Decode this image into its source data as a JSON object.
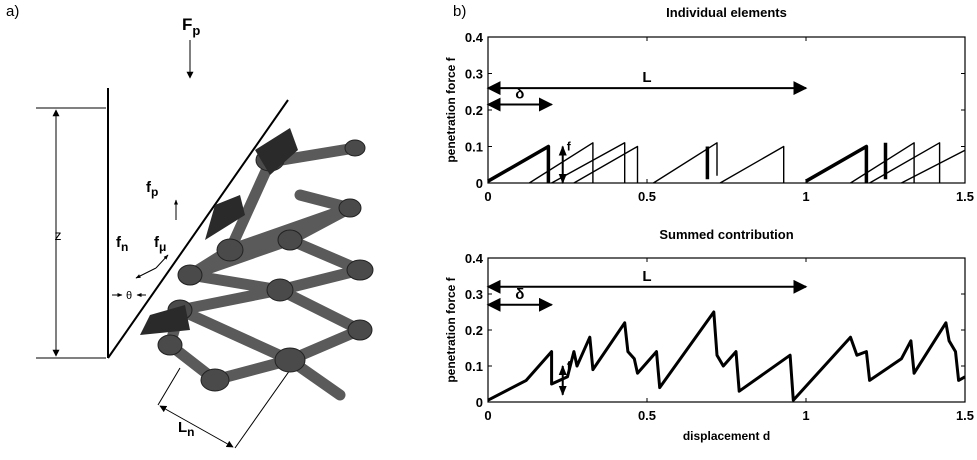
{
  "panel_labels": [
    "a)",
    "b)"
  ],
  "panel_a": {
    "labels": [
      {
        "text": "F",
        "sub": "p"
      },
      {
        "text": "f",
        "sub": "p"
      },
      {
        "text": "f",
        "sub": "n"
      },
      {
        "text": "f",
        "sub": "μ"
      },
      {
        "text": "θ"
      },
      {
        "text": "z"
      },
      {
        "text": "L",
        "sub": "n"
      }
    ]
  },
  "chart_data": [
    {
      "type": "line",
      "title": "Individual elements",
      "ylabel": "penetration force f",
      "xlim": [
        0,
        1.5
      ],
      "ylim": [
        0,
        0.4
      ],
      "xticks": [
        0,
        0.5,
        1,
        1.5
      ],
      "yticks": [
        0,
        0.1,
        0.2,
        0.3,
        0.4
      ],
      "series": [
        {
          "color": "#000000",
          "width": 3.5,
          "x": [
            0,
            0.19,
            0.19,
            null,
            0.69,
            0.69,
            null,
            1.0,
            1.19,
            1.19,
            null,
            1.25,
            1.25
          ],
          "values": [
            0.005,
            0.1,
            0,
            null,
            0.1,
            0.01,
            null,
            0.005,
            0.1,
            0,
            null,
            0.11,
            0.01
          ]
        },
        {
          "color": "#000000",
          "width": 1.4,
          "x": [
            0.13,
            0.33,
            0.33,
            null,
            0.52,
            0.72,
            0.72,
            null,
            1.14,
            1.34,
            1.34
          ],
          "values": [
            0,
            0.11,
            0,
            null,
            0,
            0.11,
            0.02,
            null,
            0,
            0.11,
            0
          ]
        },
        {
          "color": "#000000",
          "width": 1.4,
          "x": [
            0.2,
            0.43,
            0.43,
            null,
            0.73,
            0.93,
            0.93,
            null,
            1.2,
            1.42,
            1.42
          ],
          "values": [
            0,
            0.11,
            0,
            null,
            0,
            0.1,
            0,
            null,
            0,
            0.11,
            0
          ]
        },
        {
          "color": "#000000",
          "width": 1.4,
          "x": [
            0.27,
            0.47,
            0.47,
            null,
            1.3,
            1.5
          ],
          "values": [
            0,
            0.1,
            0,
            null,
            0,
            0.09
          ]
        }
      ],
      "annotations": [
        {
          "text": "L",
          "x": [
            0,
            1
          ],
          "y": 0.26
        },
        {
          "text": "δ",
          "x": [
            0,
            0.2
          ],
          "y": 0.215
        },
        {
          "text": "f",
          "x": 0.235,
          "y": [
            0.1,
            0
          ]
        }
      ]
    },
    {
      "type": "line",
      "title": "Summed contribution",
      "ylabel": "penetration force f",
      "xlabel": "displacement d",
      "xlim": [
        0,
        1.5
      ],
      "ylim": [
        0,
        0.4
      ],
      "xticks": [
        0,
        0.5,
        1,
        1.5
      ],
      "yticks": [
        0,
        0.1,
        0.2,
        0.3,
        0.4
      ],
      "series": [
        {
          "color": "#000000",
          "width": 3,
          "x": [
            0,
            0.12,
            0.2,
            0.2,
            0.25,
            0.27,
            0.28,
            0.32,
            0.33,
            0.43,
            0.44,
            0.46,
            0.47,
            0.53,
            0.54,
            0.71,
            0.72,
            0.74,
            0.78,
            0.79,
            0.95,
            0.96,
            1.14,
            1.16,
            1.19,
            1.2,
            1.3,
            1.33,
            1.34,
            1.44,
            1.45,
            1.47,
            1.48,
            1.5
          ],
          "values": [
            0.005,
            0.06,
            0.14,
            0.05,
            0.07,
            0.14,
            0.1,
            0.18,
            0.09,
            0.22,
            0.14,
            0.12,
            0.08,
            0.14,
            0.04,
            0.25,
            0.13,
            0.1,
            0.14,
            0.03,
            0.13,
            0.005,
            0.18,
            0.13,
            0.14,
            0.06,
            0.12,
            0.17,
            0.08,
            0.22,
            0.17,
            0.14,
            0.06,
            0.07
          ]
        }
      ],
      "annotations": [
        {
          "text": "L",
          "x": [
            0,
            1
          ],
          "y": 0.32
        },
        {
          "text": "δ",
          "x": [
            0,
            0.2
          ],
          "y": 0.27
        },
        {
          "text": "f",
          "x": 0.235,
          "y": [
            0.1,
            0.02
          ]
        }
      ]
    }
  ]
}
